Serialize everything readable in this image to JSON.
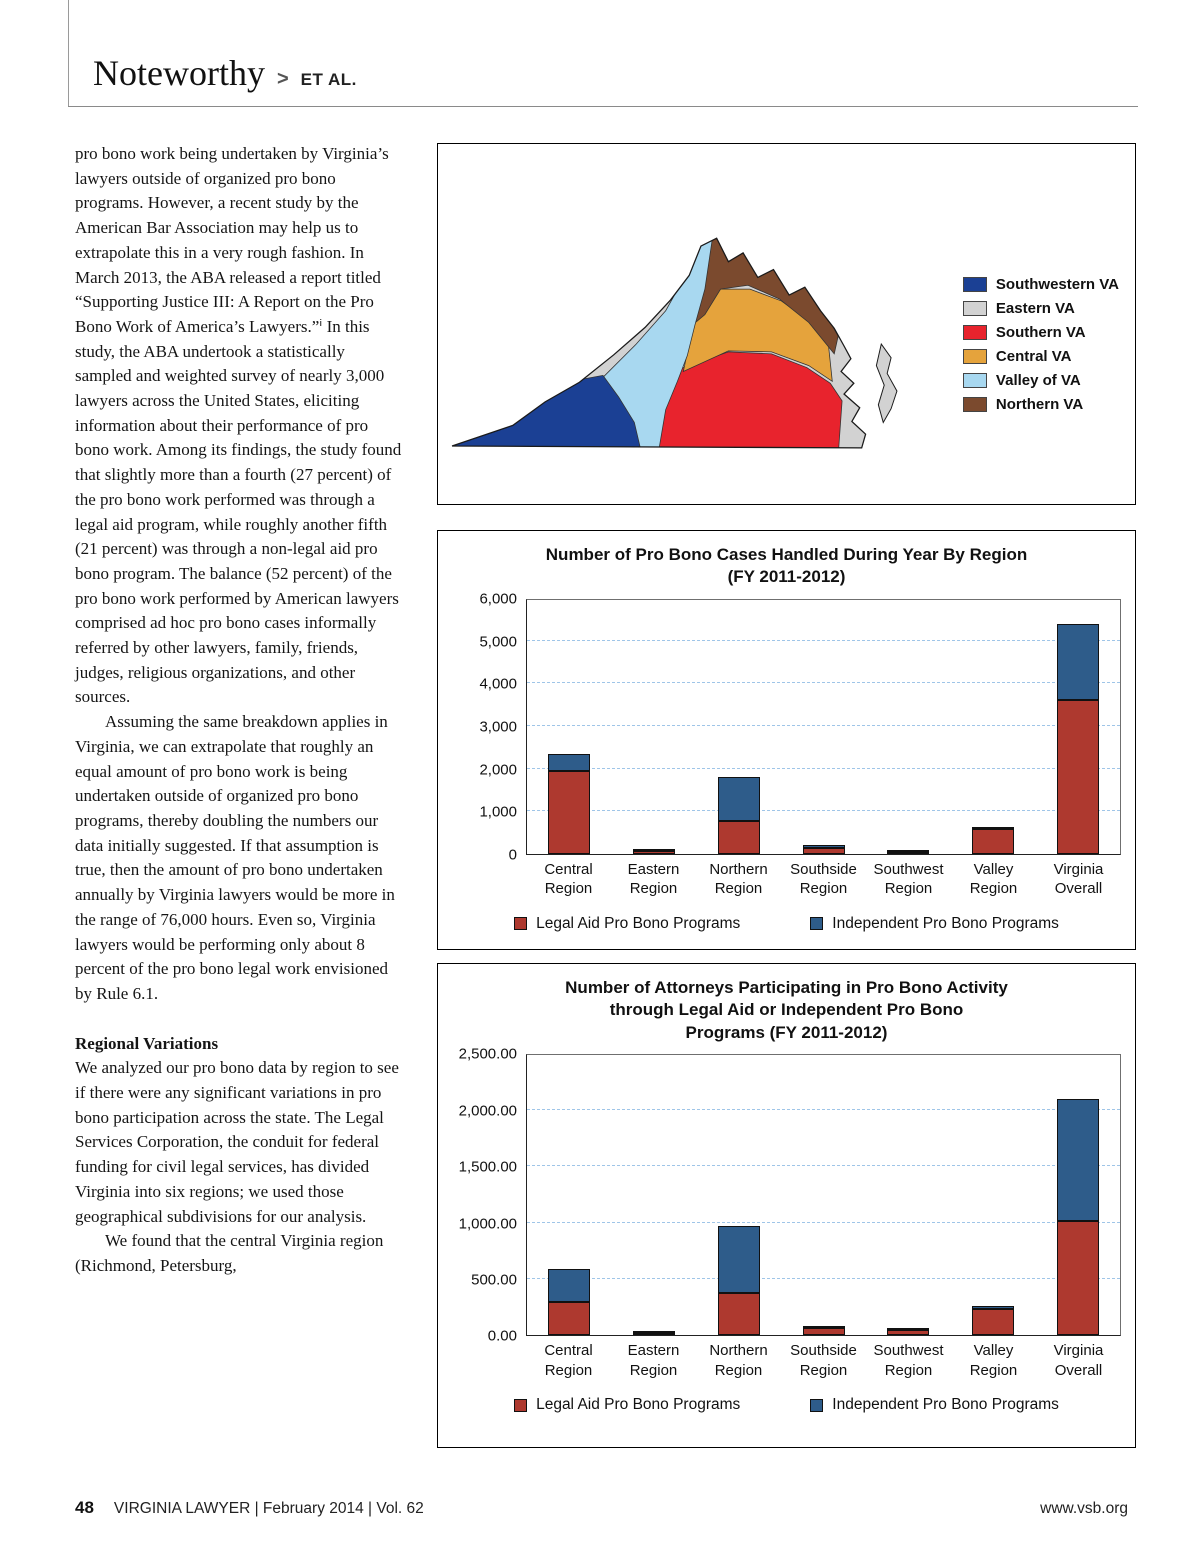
{
  "header": {
    "title": "Noteworthy",
    "chevron": ">",
    "subtitle": "ET AL."
  },
  "article": {
    "para1": "pro bono work being undertaken by Virginia’s lawyers outside of organized pro bono programs. However, a recent study by the American Bar Association may help us to extrapolate this in a very rough fashion. In March 2013, the ABA released a report titled “Supporting Justice III: A Report on the Pro Bono Work of America’s Lawyers.”ⁱ In this study, the ABA undertook a statistically sampled and weighted survey of nearly 3,000 lawyers across the United States, eliciting information about their performance of pro bono work. Among its findings, the study found that slightly more than a fourth (27 percent) of the pro bono work performed was through a legal aid program, while roughly another fifth (21 percent) was through a non-legal aid pro bono program. The balance (52 percent) of the pro bono work performed by American lawyers comprised ad hoc pro bono cases informally referred by other lawyers, family, friends, judges, religious organizations, and other sources.",
    "para2": "Assuming the same breakdown applies in Virginia, we can extrapolate that roughly an equal amount of pro bono work is being undertaken outside of organized pro bono programs, thereby doubling the numbers our data initially suggested. If that assumption is true, then the amount of pro bono undertaken annually by Virginia lawyers would be more in the range of 76,000 hours. Even so, Virginia lawyers would be performing only about 8 percent of the pro bono legal work envisioned by Rule 6.1.",
    "heading": "Regional Variations",
    "para3": "We analyzed our pro bono data by region to see if there were any significant variations in pro bono participation across the state. The Legal Services Corporation, the conduit for federal funding for civil legal services, has divided Virginia into six regions; we used those geographical subdivisions for our analysis.",
    "para4": "We found that the central Virginia region (Richmond, Petersburg,"
  },
  "map": {
    "legend": [
      {
        "label": "Southwestern VA",
        "color": "#1b4094"
      },
      {
        "label": "Eastern VA",
        "color": "#d2d2d2"
      },
      {
        "label": "Southern VA",
        "color": "#e8232d"
      },
      {
        "label": "Central VA",
        "color": "#e5a33c"
      },
      {
        "label": "Valley of VA",
        "color": "#a8d8f0"
      },
      {
        "label": "Northern VA",
        "color": "#7b4a2e"
      }
    ]
  },
  "chart_data": [
    {
      "type": "bar",
      "stacked": true,
      "title_lines": [
        "Number of Pro Bono Cases Handled  During Year By Region",
        "(FY 2011-2012)"
      ],
      "categories": [
        "Central Region",
        "Eastern Region",
        "Northern Region",
        "Southside Region",
        "Southwest Region",
        "Valley Region",
        "Virginia Overall"
      ],
      "series": [
        {
          "name": "Legal Aid Pro Bono Programs",
          "color": "#ae392f",
          "values": [
            1950,
            60,
            780,
            150,
            40,
            580,
            3600
          ]
        },
        {
          "name": "Independent Pro Bono Programs",
          "color": "#2e5c8a",
          "values": [
            400,
            40,
            1020,
            60,
            10,
            20,
            1790
          ]
        }
      ],
      "xlabel": "",
      "ylabel": "",
      "ylim": [
        0,
        6000
      ],
      "ytick_step": 1000,
      "ytick_labels": [
        "0",
        "1,000",
        "2,000",
        "3,000",
        "4,000",
        "5,000",
        "6,000"
      ],
      "grid": "horizontal-dashed",
      "legend_position": "bottom"
    },
    {
      "type": "bar",
      "stacked": true,
      "title_lines": [
        "Number of Attorneys Participating in Pro Bono Activity",
        "through Legal Aid or Independent Pro Bono",
        "Programs (FY 2011-2012)"
      ],
      "categories": [
        "Central Region",
        "Eastern Region",
        "Northern Region",
        "Southside Region",
        "Southwest Region",
        "Valley Region",
        "Virginia Overall"
      ],
      "series": [
        {
          "name": "Legal Aid Pro Bono Programs",
          "color": "#ae392f",
          "values": [
            290,
            5,
            370,
            60,
            45,
            230,
            1010
          ]
        },
        {
          "name": "Independent Pro Bono Programs",
          "color": "#2e5c8a",
          "values": [
            290,
            10,
            595,
            5,
            5,
            30,
            1080
          ]
        }
      ],
      "xlabel": "",
      "ylabel": "",
      "ylim": [
        0,
        2500
      ],
      "ytick_step": 500,
      "ytick_labels": [
        "0.00",
        "500.00",
        "1,000.00",
        "1,500.00",
        "2,000.00",
        "2,500.00"
      ],
      "grid": "horizontal-dashed",
      "legend_position": "bottom"
    }
  ],
  "footer": {
    "page_number": "48",
    "journal_line": "VIRGINIA LAWYER  |  February 2014  |  Vol. 62",
    "website": "www.vsb.org"
  }
}
